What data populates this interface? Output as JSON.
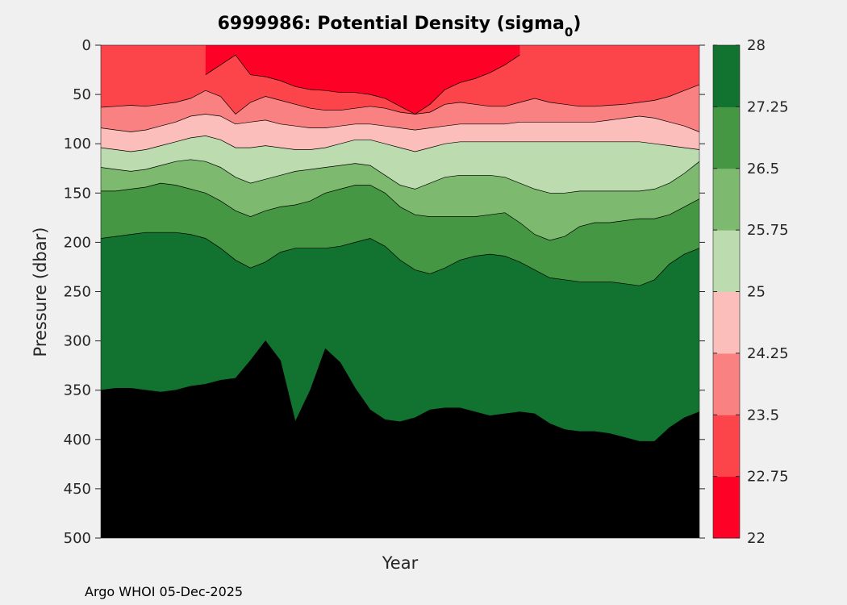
{
  "chart_data": {
    "type": "contourf",
    "title_main": "6999986: Potential Density (sigma",
    "title_sub": "0",
    "title_end": ")",
    "xlabel": "Year",
    "ylabel": "Pressure (dbar)",
    "ylim": [
      0,
      500
    ],
    "yticks": [
      0,
      50,
      100,
      150,
      200,
      250,
      300,
      350,
      400,
      450,
      500
    ],
    "colorbar": {
      "levels": [
        22,
        22.75,
        23.5,
        24.25,
        25,
        25.75,
        26.5,
        27.25,
        28
      ],
      "tick_labels": [
        "22",
        "22.75",
        "23.5",
        "24.25",
        "25",
        "25.75",
        "26.5",
        "27.25",
        "28"
      ],
      "colors": [
        "#fe0127",
        "#fc444b",
        "#f98181",
        "#fcbebb",
        "#bcdcb0",
        "#7eb970",
        "#459743",
        "#127230"
      ]
    },
    "x_profiles": [
      0,
      0.5,
      1,
      1.5,
      2,
      2.5,
      3,
      3.5,
      4,
      4.5,
      5,
      5.5,
      6,
      6.5,
      7,
      7.5,
      8,
      8.5,
      9,
      9.5,
      10,
      10.5,
      11,
      11.5,
      12,
      12.5,
      13,
      13.5,
      14,
      14.5,
      15,
      15.5,
      16,
      16.5,
      17,
      17.5,
      18,
      18.5,
      19,
      19.5,
      20
    ],
    "contour_depths": {
      "22.75": [
        null,
        null,
        null,
        null,
        null,
        null,
        null,
        30,
        20,
        10,
        30,
        32,
        36,
        42,
        45,
        46,
        48,
        48,
        50,
        54,
        62,
        70,
        60,
        45,
        38,
        34,
        28,
        20,
        10,
        null,
        null,
        null,
        null,
        null,
        null,
        null,
        null,
        null,
        null,
        null,
        null
      ],
      "23.5": [
        63,
        62,
        61,
        62,
        60,
        58,
        54,
        46,
        52,
        70,
        58,
        52,
        56,
        60,
        64,
        66,
        66,
        64,
        62,
        64,
        68,
        70,
        68,
        60,
        58,
        60,
        62,
        62,
        58,
        54,
        58,
        60,
        62,
        62,
        61,
        60,
        58,
        56,
        52,
        46,
        40
      ],
      "24.25": [
        84,
        86,
        88,
        86,
        82,
        78,
        72,
        70,
        72,
        80,
        78,
        76,
        80,
        82,
        84,
        84,
        82,
        80,
        80,
        82,
        84,
        86,
        84,
        82,
        80,
        80,
        80,
        80,
        78,
        78,
        78,
        78,
        78,
        78,
        76,
        74,
        72,
        74,
        78,
        82,
        88
      ],
      "25": [
        104,
        106,
        108,
        106,
        102,
        98,
        94,
        92,
        96,
        104,
        104,
        102,
        104,
        106,
        106,
        104,
        100,
        96,
        96,
        100,
        104,
        108,
        104,
        100,
        98,
        98,
        98,
        98,
        98,
        98,
        98,
        98,
        98,
        98,
        98,
        98,
        98,
        100,
        102,
        104,
        106
      ],
      "25.75": [
        124,
        126,
        128,
        126,
        122,
        118,
        116,
        118,
        124,
        134,
        140,
        136,
        132,
        128,
        126,
        124,
        122,
        120,
        122,
        132,
        142,
        146,
        140,
        134,
        132,
        132,
        132,
        134,
        140,
        146,
        150,
        150,
        148,
        148,
        148,
        148,
        148,
        146,
        140,
        130,
        118
      ],
      "26.5": [
        148,
        148,
        146,
        144,
        140,
        142,
        146,
        150,
        158,
        168,
        174,
        168,
        164,
        162,
        158,
        150,
        146,
        142,
        142,
        150,
        164,
        172,
        174,
        174,
        174,
        174,
        172,
        170,
        180,
        192,
        198,
        194,
        184,
        180,
        180,
        178,
        176,
        176,
        172,
        164,
        156
      ],
      "27.25": [
        196,
        194,
        192,
        190,
        190,
        190,
        192,
        196,
        206,
        218,
        226,
        220,
        210,
        206,
        206,
        206,
        204,
        200,
        196,
        204,
        218,
        228,
        232,
        226,
        218,
        214,
        212,
        214,
        220,
        228,
        236,
        238,
        240,
        240,
        240,
        242,
        244,
        238,
        222,
        212,
        206
      ],
      "28": [
        350,
        348,
        348,
        350,
        352,
        350,
        346,
        344,
        340,
        338,
        320,
        300,
        320,
        382,
        350,
        308,
        322,
        348,
        370,
        380,
        382,
        378,
        370,
        368,
        368,
        372,
        376,
        374,
        372,
        374,
        384,
        390,
        392,
        392,
        394,
        398,
        402,
        402,
        388,
        378,
        372
      ]
    }
  },
  "footer": "Argo WHOI 05-Dec-2025"
}
